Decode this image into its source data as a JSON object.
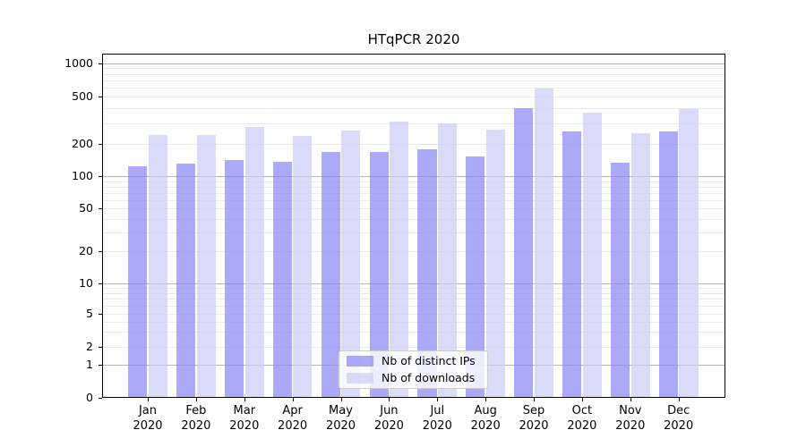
{
  "figure": {
    "background": "#ffffff"
  },
  "chart_data": {
    "type": "bar",
    "title": "HTqPCR 2020",
    "categories": [
      "Jan 2020",
      "Feb 2020",
      "Mar 2020",
      "Apr 2020",
      "May 2020",
      "Jun 2020",
      "Jul 2020",
      "Aug 2020",
      "Sep 2020",
      "Oct 2020",
      "Nov 2020",
      "Dec 2020"
    ],
    "x_tick_month_labels": [
      "Jan",
      "Feb",
      "Mar",
      "Apr",
      "May",
      "Jun",
      "Jul",
      "Aug",
      "Sep",
      "Oct",
      "Nov",
      "Dec"
    ],
    "x_tick_year_label": "2020",
    "series": [
      {
        "name": "Nb of distinct IPs",
        "color": "rgba(137,137,245,0.72)",
        "values": [
          124,
          130,
          142,
          135,
          168,
          168,
          179,
          153,
          400,
          254,
          133,
          255
        ]
      },
      {
        "name": "Nb of downloads",
        "color": "rgba(204,204,246,0.72)",
        "values": [
          238,
          239,
          278,
          236,
          261,
          310,
          297,
          263,
          595,
          370,
          245,
          395
        ]
      }
    ],
    "y_axis": {
      "scale": "log-like (compressed near zero)",
      "tick_labels": [
        "1000",
        "500",
        "200",
        "100",
        "50",
        "20",
        "10",
        "5",
        "2",
        "1",
        "0"
      ],
      "tick_values": [
        1000,
        500,
        200,
        100,
        50,
        20,
        10,
        5,
        2,
        1,
        0
      ],
      "ylim": [
        0,
        1000
      ]
    },
    "grid": "horizontal major+minor, no vertical",
    "legend": {
      "position": "inside bottom-center",
      "entries": [
        "Nb of distinct IPs",
        "Nb of downloads"
      ]
    },
    "colors": {
      "major_gridline": "#b4b4b4",
      "minor_gridline": "#e9e9e9",
      "spine": "#000000",
      "legend_border": "#cccccc"
    }
  }
}
